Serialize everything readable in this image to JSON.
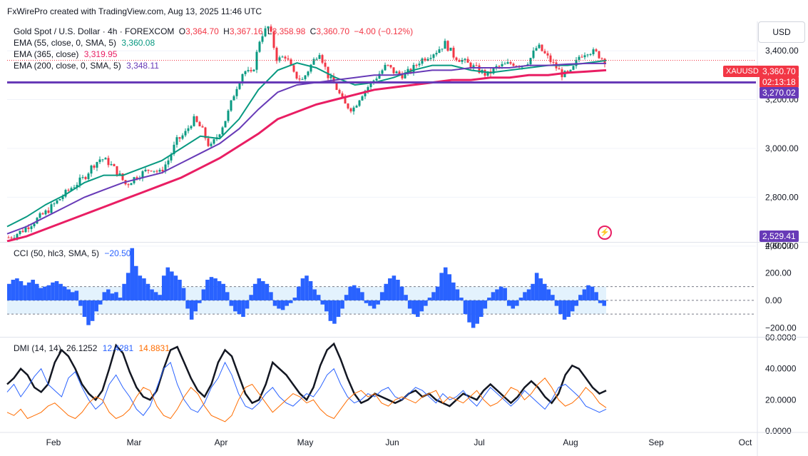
{
  "header": {
    "credit": "FxWirePro created with TradingView.com, Aug 13, 2025 11:46 UTC"
  },
  "currency_button": "USD",
  "main_legend": {
    "symbol": "Gold Spot / U.S. Dollar · 4h · FOREXCOM",
    "o_label": "O",
    "o": "3,364.70",
    "h_label": "H",
    "h": "3,367.16",
    "l_label": "L",
    "l": "3,358.98",
    "c_label": "C",
    "c": "3,360.70",
    "change": "−4.00 (−0.12%)",
    "ema1_label": "EMA (55, close, 0, SMA, 5)",
    "ema1_value": "3,360.08",
    "ema2_label": "EMA (365, close)",
    "ema2_value": "3,319.95",
    "ema3_label": "EMA (200, close, 0, SMA, 5)",
    "ema3_value": "3,348.11"
  },
  "price_tags": {
    "symbol": "XAUUSD",
    "last": "3,360.70",
    "countdown": "02:13:18",
    "hline": "3,270.02",
    "bottom": "2,529.41"
  },
  "cci_legend": {
    "label": "CCI (50, hlc3, SMA, 5)",
    "value": "−20.50"
  },
  "dmi_legend": {
    "label": "DMI (14, 14)",
    "adx": "26.1252",
    "plus_di": "12.4281",
    "minus_di": "14.8831"
  },
  "colors": {
    "up": "#089981",
    "down": "#f23645",
    "ema55": "#089981",
    "ema200": "#673ab7",
    "ema365": "#e91e63",
    "hline": "#673ab7",
    "cci_pos": "#2962ff",
    "cci_neg": "#2962ff",
    "adx": "#131722",
    "plus_di": "#2962ff",
    "minus_di": "#ff6d00"
  },
  "chart_data": [
    {
      "type": "candlestick",
      "title": "Gold Spot / U.S. Dollar · 4h · FOREXCOM",
      "ylim": [
        2620,
        3520
      ],
      "y_ticks": [
        2600,
        2800,
        3000,
        3200,
        3400
      ],
      "y_tick_labels": [
        "2,600.00",
        "2,800.00",
        "3,000.00",
        "3,200.00",
        "3,400.00"
      ],
      "x_labels": [
        "Feb",
        "Mar",
        "Apr",
        "May",
        "Jun",
        "Jul",
        "Aug",
        "Sep",
        "Oct"
      ],
      "close_path": [
        [
          0,
          2635
        ],
        [
          0.03,
          2660
        ],
        [
          0.06,
          2700
        ],
        [
          0.09,
          2740
        ],
        [
          0.12,
          2790
        ],
        [
          0.15,
          2840
        ],
        [
          0.18,
          2880
        ],
        [
          0.2,
          2930
        ],
        [
          0.22,
          2960
        ],
        [
          0.24,
          2940
        ],
        [
          0.26,
          2900
        ],
        [
          0.28,
          2850
        ],
        [
          0.3,
          2880
        ],
        [
          0.32,
          2900
        ],
        [
          0.34,
          2920
        ],
        [
          0.36,
          2900
        ],
        [
          0.38,
          2950
        ],
        [
          0.4,
          3030
        ],
        [
          0.42,
          3060
        ],
        [
          0.44,
          3120
        ],
        [
          0.46,
          3080
        ],
        [
          0.48,
          3000
        ],
        [
          0.5,
          3060
        ],
        [
          0.52,
          3130
        ],
        [
          0.54,
          3240
        ],
        [
          0.56,
          3320
        ],
        [
          0.58,
          3300
        ],
        [
          0.6,
          3460
        ],
        [
          0.62,
          3500
        ],
        [
          0.64,
          3360
        ],
        [
          0.66,
          3380
        ],
        [
          0.68,
          3300
        ],
        [
          0.7,
          3280
        ],
        [
          0.72,
          3340
        ],
        [
          0.74,
          3400
        ],
        [
          0.76,
          3300
        ],
        [
          0.78,
          3250
        ],
        [
          0.8,
          3180
        ],
        [
          0.82,
          3160
        ],
        [
          0.84,
          3220
        ],
        [
          0.86,
          3260
        ],
        [
          0.88,
          3300
        ],
        [
          0.9,
          3340
        ],
        [
          0.92,
          3310
        ],
        [
          0.94,
          3300
        ],
        [
          0.96,
          3320
        ],
        [
          0.98,
          3360
        ],
        [
          1.0,
          3380
        ],
        [
          1.02,
          3400
        ],
        [
          1.04,
          3430
        ],
        [
          1.06,
          3380
        ],
        [
          1.08,
          3360
        ],
        [
          1.1,
          3340
        ],
        [
          1.12,
          3320
        ],
        [
          1.14,
          3300
        ],
        [
          1.16,
          3330
        ],
        [
          1.18,
          3340
        ],
        [
          1.2,
          3350
        ],
        [
          1.22,
          3340
        ],
        [
          1.24,
          3360
        ],
        [
          1.26,
          3420
        ],
        [
          1.28,
          3380
        ],
        [
          1.3,
          3340
        ],
        [
          1.32,
          3300
        ],
        [
          1.34,
          3310
        ],
        [
          1.36,
          3380
        ],
        [
          1.38,
          3400
        ],
        [
          1.4,
          3390
        ],
        [
          1.42,
          3360
        ]
      ],
      "series": [
        {
          "name": "EMA (55, close, 0, SMA, 5)",
          "values": [
            2680,
            2720,
            2770,
            2810,
            2860,
            2890,
            2890,
            2920,
            2950,
            3000,
            3050,
            3040,
            3120,
            3240,
            3320,
            3350,
            3330,
            3290,
            3260,
            3270,
            3290,
            3320,
            3340,
            3340,
            3320,
            3310,
            3320,
            3330,
            3340,
            3340,
            3350,
            3360
          ]
        },
        {
          "name": "EMA (200, close, 0, SMA, 5)",
          "values": [
            2650,
            2680,
            2720,
            2760,
            2800,
            2830,
            2860,
            2880,
            2900,
            2940,
            2980,
            3020,
            3080,
            3160,
            3230,
            3260,
            3270,
            3280,
            3290,
            3300,
            3300,
            3310,
            3320,
            3320,
            3330,
            3330,
            3330,
            3340,
            3340,
            3345,
            3348,
            3348
          ]
        },
        {
          "name": "EMA (365, close)",
          "values": [
            2620,
            2640,
            2670,
            2700,
            2730,
            2760,
            2790,
            2820,
            2850,
            2880,
            2920,
            2960,
            3010,
            3060,
            3120,
            3150,
            3180,
            3200,
            3220,
            3240,
            3250,
            3260,
            3270,
            3280,
            3280,
            3290,
            3290,
            3300,
            3300,
            3310,
            3315,
            3320
          ]
        }
      ],
      "hline": 3270.02
    },
    {
      "type": "bar",
      "title": "CCI (50, hlc3, SMA, 5)",
      "ylim": [
        -260,
        420
      ],
      "y_ticks": [
        -200,
        0,
        200,
        400
      ],
      "y_tick_labels": [
        "−200.00",
        "0.00",
        "200.00",
        "400.00"
      ],
      "band": [
        -100,
        100
      ],
      "values": [
        120,
        150,
        160,
        140,
        110,
        130,
        150,
        120,
        90,
        100,
        110,
        130,
        140,
        120,
        100,
        80,
        60,
        70,
        -40,
        -120,
        -180,
        -150,
        -80,
        -30,
        60,
        80,
        50,
        60,
        20,
        120,
        200,
        380,
        250,
        180,
        160,
        120,
        80,
        60,
        40,
        180,
        240,
        210,
        180,
        150,
        90,
        -60,
        -140,
        -80,
        -20,
        80,
        150,
        170,
        160,
        140,
        120,
        60,
        -40,
        -80,
        -100,
        -120,
        -60,
        40,
        120,
        160,
        140,
        120,
        60,
        -40,
        -60,
        -70,
        -40,
        -20,
        20,
        100,
        160,
        180,
        140,
        80,
        40,
        -30,
        -80,
        -150,
        -170,
        -120,
        -60,
        40,
        100,
        110,
        90,
        60,
        -20,
        -40,
        -60,
        -30,
        60,
        120,
        160,
        180,
        150,
        100,
        40,
        -60,
        -100,
        -120,
        -80,
        -40,
        20,
        60,
        100,
        200,
        240,
        190,
        130,
        80,
        20,
        -100,
        -160,
        -200,
        -170,
        -120,
        -60,
        20,
        60,
        80,
        100,
        90,
        -40,
        -60,
        -40,
        20,
        60,
        80,
        120,
        200,
        160,
        120,
        80,
        40,
        -40,
        -100,
        -140,
        -120,
        -80,
        -40,
        40,
        80,
        110,
        100,
        60,
        -20,
        -40
      ]
    },
    {
      "type": "line",
      "title": "DMI (14, 14)",
      "ylim": [
        0,
        60
      ],
      "y_ticks": [
        0,
        20,
        40,
        60
      ],
      "y_tick_labels": [
        "0.0000",
        "20.0000",
        "40.0000",
        "60.0000"
      ],
      "series": [
        {
          "name": "ADX",
          "values": [
            30,
            34,
            40,
            36,
            28,
            25,
            30,
            44,
            52,
            48,
            40,
            30,
            24,
            20,
            26,
            40,
            55,
            50,
            38,
            28,
            22,
            20,
            26,
            40,
            52,
            54,
            44,
            34,
            26,
            22,
            30,
            44,
            52,
            48,
            36,
            24,
            18,
            20,
            30,
            44,
            40,
            36,
            30,
            24,
            20,
            28,
            42,
            52,
            56,
            46,
            34,
            24,
            18,
            20,
            24,
            22,
            20,
            18,
            20,
            24,
            26,
            22,
            24,
            20,
            18,
            16,
            20,
            24,
            22,
            20,
            26,
            30,
            26,
            22,
            18,
            22,
            28,
            32,
            28,
            22,
            18,
            24,
            36,
            42,
            40,
            34,
            28,
            24,
            26
          ]
        },
        {
          "name": "+DI",
          "values": [
            25,
            30,
            22,
            28,
            35,
            40,
            30,
            26,
            22,
            34,
            38,
            28,
            20,
            14,
            18,
            30,
            36,
            28,
            22,
            14,
            10,
            16,
            28,
            40,
            44,
            30,
            20,
            14,
            12,
            18,
            28,
            34,
            44,
            36,
            24,
            16,
            14,
            18,
            24,
            28,
            22,
            18,
            16,
            20,
            24,
            22,
            28,
            36,
            40,
            30,
            22,
            18,
            20,
            24,
            22,
            26,
            28,
            22,
            20,
            24,
            28,
            26,
            22,
            18,
            24,
            20,
            22,
            26,
            20,
            16,
            22,
            28,
            24,
            20,
            16,
            20,
            26,
            22,
            18,
            14,
            20,
            28,
            30,
            26,
            22,
            16,
            14,
            12,
            14
          ]
        },
        {
          "name": "−DI",
          "values": [
            12,
            10,
            14,
            8,
            10,
            12,
            16,
            18,
            14,
            10,
            8,
            12,
            18,
            22,
            20,
            12,
            8,
            10,
            14,
            22,
            28,
            26,
            16,
            10,
            8,
            14,
            22,
            28,
            24,
            16,
            10,
            8,
            6,
            10,
            20,
            28,
            30,
            24,
            18,
            12,
            16,
            20,
            24,
            22,
            18,
            20,
            14,
            10,
            8,
            14,
            20,
            24,
            26,
            22,
            24,
            18,
            16,
            20,
            22,
            20,
            18,
            22,
            24,
            26,
            18,
            22,
            20,
            18,
            22,
            26,
            20,
            16,
            18,
            22,
            28,
            26,
            20,
            24,
            30,
            34,
            28,
            20,
            16,
            18,
            22,
            28,
            24,
            18,
            15
          ]
        }
      ]
    }
  ]
}
